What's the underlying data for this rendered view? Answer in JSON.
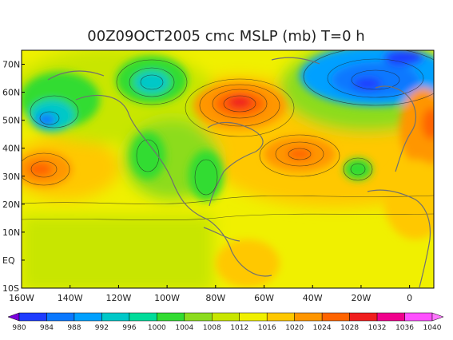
{
  "title": "00Z09OCT2005 cmc MSLP (mb) T=0 h",
  "map": {
    "lat_labels": [
      "70N",
      "60N",
      "50N",
      "40N",
      "30N",
      "20N",
      "10N",
      "EQ",
      "10S"
    ],
    "lon_labels": [
      "160W",
      "140W",
      "120W",
      "100W",
      "80W",
      "60W",
      "40W",
      "20W",
      "0"
    ],
    "extent": {
      "lon_min": -160,
      "lon_max": 10,
      "lat_min": -10,
      "lat_max": 75
    }
  },
  "colorbar": {
    "levels": [
      "980",
      "984",
      "988",
      "992",
      "996",
      "1000",
      "1004",
      "1008",
      "1012",
      "1016",
      "1020",
      "1024",
      "1028",
      "1032",
      "1036",
      "1040"
    ],
    "colors": [
      "#7a00dc",
      "#1e3cff",
      "#0a78ff",
      "#00a0ff",
      "#00c8c8",
      "#00dc9a",
      "#32dc32",
      "#8cdc1e",
      "#c8e600",
      "#f0f000",
      "#ffc800",
      "#ff9600",
      "#ff6400",
      "#f01e1e",
      "#f0008c",
      "#ff50ff",
      "#ff78ff"
    ]
  }
}
